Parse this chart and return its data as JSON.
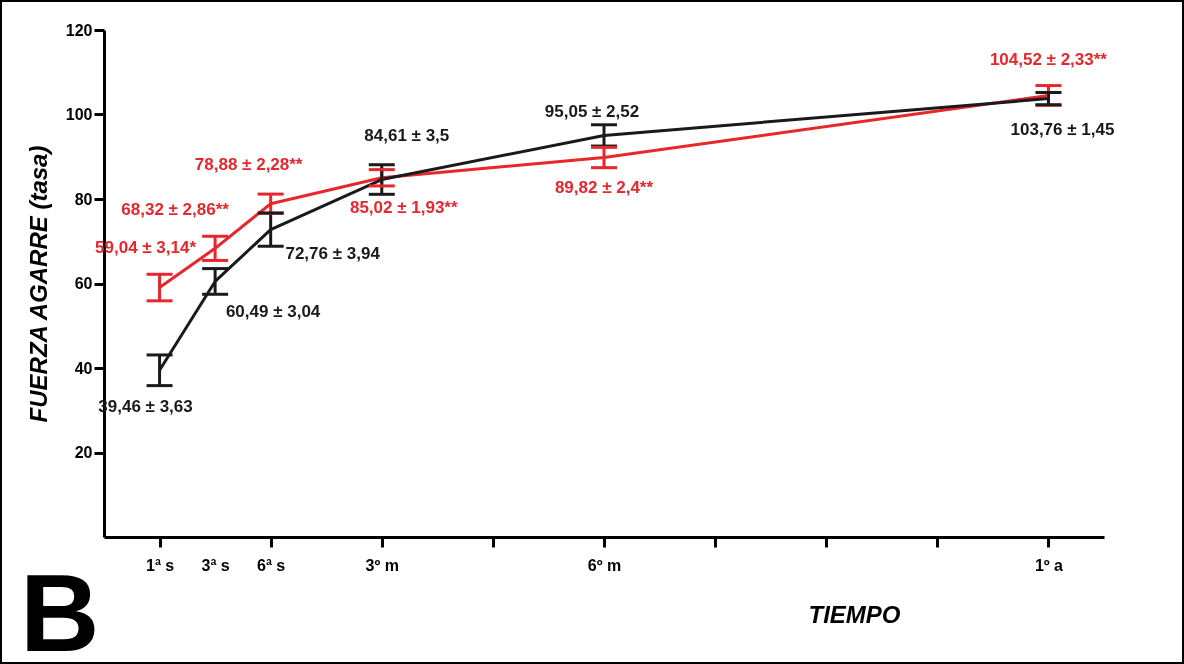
{
  "chart_data": {
    "type": "line",
    "xlabel": "TIEMPO",
    "ylabel": "FUERZA  AGARRE (tasa)",
    "categories": [
      "1ª s",
      "3ª s",
      "6ª s",
      null,
      "3º m",
      null,
      null,
      null,
      "6º m",
      null,
      null,
      null,
      null,
      null,
      null,
      null,
      "1º a"
    ],
    "ylim": [
      0,
      120
    ],
    "yticks": [
      20,
      40,
      60,
      80,
      100,
      120
    ],
    "series": [
      {
        "color": "#e8262b",
        "values": [
          59.04,
          68.32,
          78.88,
          null,
          85.02,
          null,
          null,
          null,
          89.82,
          null,
          null,
          null,
          null,
          null,
          null,
          null,
          104.52
        ],
        "errors": [
          3.14,
          2.86,
          2.28,
          null,
          1.93,
          null,
          null,
          null,
          2.4,
          null,
          null,
          null,
          null,
          null,
          null,
          null,
          2.33
        ],
        "value_labels": [
          "59,04 ± 3,14*",
          "68,32 ± 2,86**",
          "78,88 ± 2,28**",
          null,
          "85,02 ± 1,93**",
          null,
          null,
          null,
          "89,82 ± 2,4**",
          null,
          null,
          null,
          null,
          null,
          null,
          null,
          "104,52 ± 2,33**"
        ]
      },
      {
        "color": "#1a1a1a",
        "values": [
          39.46,
          60.49,
          72.76,
          null,
          84.61,
          null,
          null,
          null,
          95.05,
          null,
          null,
          null,
          null,
          null,
          null,
          null,
          103.76
        ],
        "errors": [
          3.63,
          3.04,
          3.94,
          null,
          3.5,
          null,
          null,
          null,
          2.52,
          null,
          null,
          null,
          null,
          null,
          null,
          null,
          1.45
        ],
        "value_labels": [
          "39,46 ± 3,63",
          "60,49 ± 3,04",
          "72,76 ± 3,94",
          null,
          "84,61 ± 3,5",
          null,
          null,
          null,
          "95,05 ± 2,52",
          null,
          null,
          null,
          null,
          null,
          null,
          null,
          "103,76 ± 1,45"
        ]
      }
    ],
    "grid": false,
    "marker": "none",
    "annotations": [
      "B"
    ]
  }
}
